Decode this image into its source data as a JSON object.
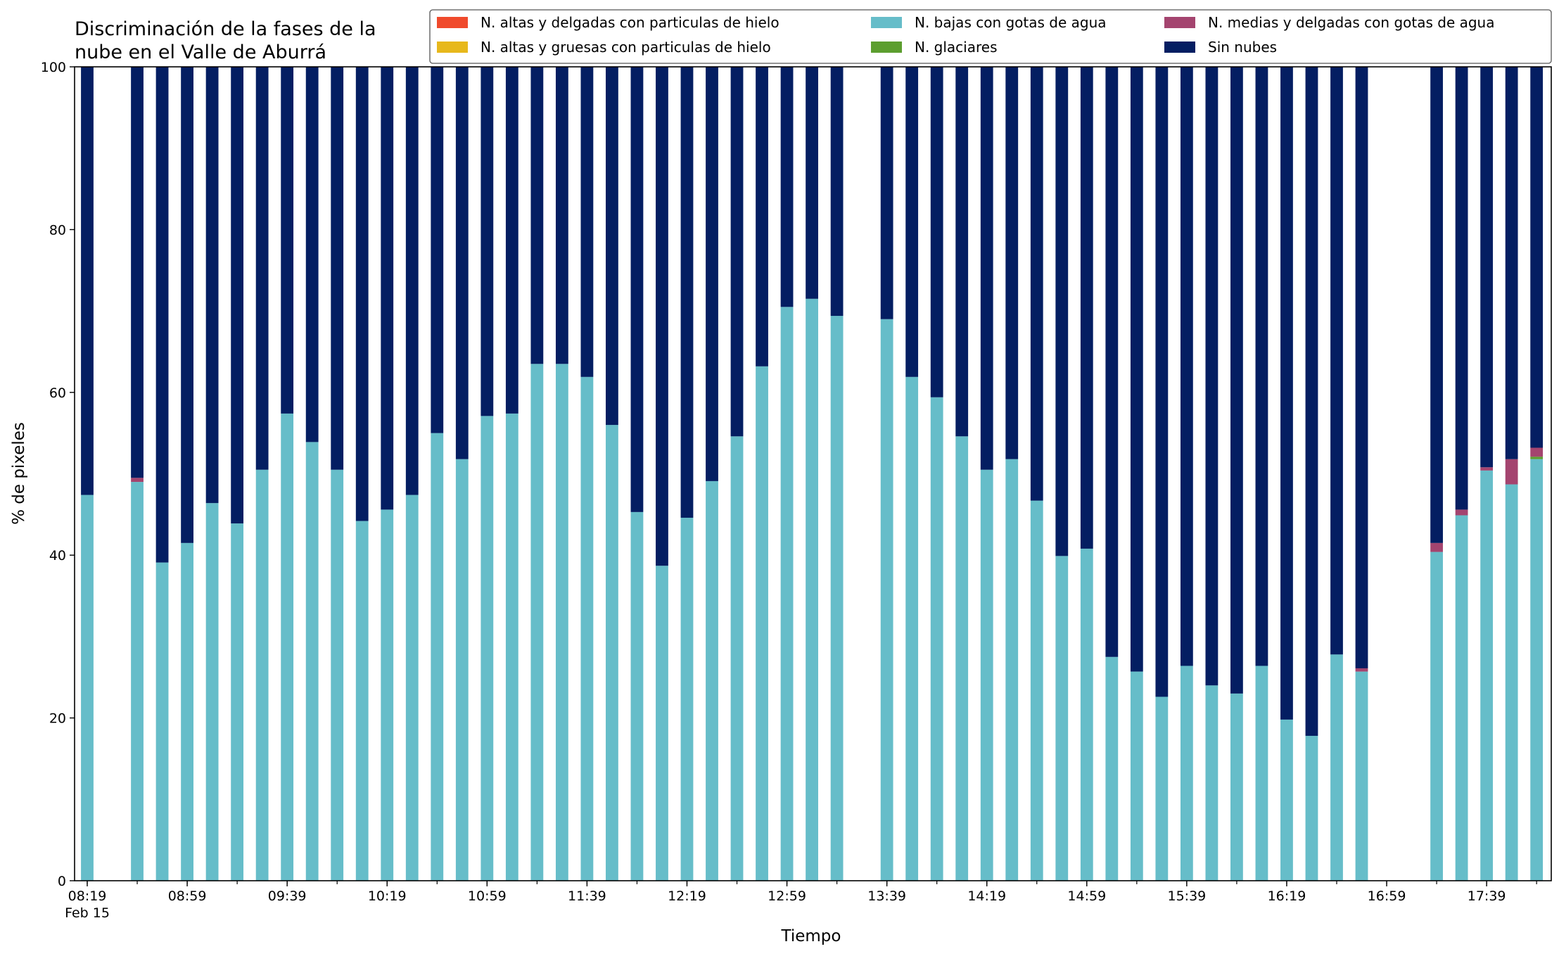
{
  "chart_data": {
    "type": "bar",
    "stacked": true,
    "title_lines": [
      "Discriminación de la fases de la",
      "nube en el Valle de Aburrá"
    ],
    "xlabel": "Tiempo",
    "ylabel": "% de pixeles",
    "ylim": [
      0,
      100
    ],
    "yticks": [
      "0",
      "20",
      "40",
      "60",
      "80",
      "100"
    ],
    "x_start": "08:19",
    "x_step_minutes": 10,
    "x_count": 59,
    "x_ticks": [
      {
        "index": 0,
        "label": "08:19",
        "sublabel": "Feb 15"
      },
      {
        "index": 4,
        "label": "08:59"
      },
      {
        "index": 8,
        "label": "09:39"
      },
      {
        "index": 12,
        "label": "10:19"
      },
      {
        "index": 16,
        "label": "10:59"
      },
      {
        "index": 20,
        "label": "11:39"
      },
      {
        "index": 24,
        "label": "12:19"
      },
      {
        "index": 28,
        "label": "12:59"
      },
      {
        "index": 32,
        "label": "13:39"
      },
      {
        "index": 36,
        "label": "14:19"
      },
      {
        "index": 40,
        "label": "14:59"
      },
      {
        "index": 44,
        "label": "15:39"
      },
      {
        "index": 48,
        "label": "16:19"
      },
      {
        "index": 52,
        "label": "16:59"
      },
      {
        "index": 56,
        "label": "17:39"
      }
    ],
    "legend_position": "top-right",
    "series": [
      {
        "name": "N. altas y delgadas con particulas de hielo",
        "color": "#f04a2c",
        "values": [
          0,
          null,
          0,
          0,
          0,
          0,
          0,
          0,
          0,
          0,
          0,
          0,
          0,
          0,
          0,
          0,
          0,
          0,
          0,
          0,
          0,
          0,
          0,
          0,
          0,
          0,
          0,
          0,
          0,
          0,
          0,
          null,
          0,
          0,
          0,
          0,
          0,
          0,
          0,
          0,
          0,
          0,
          0,
          0,
          0,
          0,
          0,
          0,
          0,
          0,
          0,
          0,
          null,
          null,
          0,
          0,
          0,
          0,
          0
        ]
      },
      {
        "name": "N. altas y gruesas con particulas de hielo",
        "color": "#e7b81c",
        "values": [
          0,
          null,
          0,
          0,
          0,
          0,
          0,
          0,
          0,
          0,
          0,
          0,
          0,
          0,
          0,
          0,
          0,
          0,
          0,
          0,
          0,
          0,
          0,
          0,
          0,
          0,
          0,
          0,
          0,
          0,
          0,
          null,
          0,
          0,
          0,
          0,
          0,
          0,
          0,
          0,
          0,
          0,
          0,
          0,
          0,
          0,
          0,
          0,
          0,
          0,
          0,
          0,
          null,
          null,
          0,
          0,
          0,
          0,
          0
        ]
      },
      {
        "name": "N. bajas con gotas de agua",
        "color": "#66bdc9",
        "values": [
          47.4,
          null,
          49,
          39.1,
          41.5,
          46.4,
          43.9,
          50.5,
          57.4,
          53.9,
          50.5,
          44.2,
          45.6,
          47.4,
          55,
          51.8,
          57.1,
          57.4,
          63.5,
          63.5,
          61.9,
          56,
          45.3,
          38.7,
          44.6,
          49.1,
          54.6,
          63.2,
          70.5,
          71.5,
          69.4,
          null,
          69,
          61.9,
          59.4,
          54.6,
          50.5,
          51.8,
          46.7,
          39.9,
          40.8,
          27.5,
          25.7,
          22.6,
          26.4,
          24,
          23,
          26.4,
          19.8,
          17.8,
          27.8,
          25.7,
          null,
          null,
          40.4,
          44.9,
          50.4,
          48.7,
          51.8
        ]
      },
      {
        "name": "N. glaciares",
        "color": "#5c9e2f",
        "values": [
          0,
          null,
          0,
          0,
          0,
          0,
          0,
          0,
          0,
          0,
          0,
          0,
          0,
          0,
          0,
          0,
          0,
          0,
          0,
          0,
          0,
          0,
          0,
          0,
          0,
          0,
          0,
          0,
          0,
          0,
          0,
          null,
          0,
          0,
          0,
          0,
          0,
          0,
          0,
          0,
          0,
          0,
          0,
          0,
          0,
          0,
          0,
          0,
          0,
          0,
          0,
          0,
          null,
          null,
          0,
          0,
          0,
          0,
          0.3
        ]
      },
      {
        "name": "N. medias y delgadas con gotas de agua",
        "color": "#a4446f",
        "values": [
          0,
          null,
          0.5,
          0,
          0,
          0,
          0,
          0,
          0,
          0,
          0,
          0,
          0,
          0,
          0,
          0,
          0,
          0,
          0,
          0,
          0,
          0,
          0,
          0,
          0,
          0,
          0,
          0,
          0,
          0,
          0,
          null,
          0,
          0,
          0,
          0,
          0,
          0,
          0,
          0,
          0,
          0,
          0,
          0,
          0,
          0,
          0,
          0,
          0,
          0,
          0,
          0.4,
          null,
          null,
          1.1,
          0.7,
          0.4,
          3.1,
          1.1
        ]
      },
      {
        "name": "Sin nubes",
        "color": "#041e62",
        "values": [
          52.6,
          null,
          50.5,
          60.9,
          58.5,
          53.6,
          56.1,
          49.5,
          42.6,
          46.1,
          49.5,
          55.8,
          54.4,
          52.6,
          45,
          48.2,
          42.9,
          42.6,
          36.5,
          36.5,
          38.1,
          44,
          54.7,
          61.3,
          55.4,
          50.9,
          45.4,
          36.8,
          29.5,
          28.5,
          30.6,
          null,
          31,
          38.1,
          40.6,
          45.4,
          49.5,
          48.2,
          53.3,
          60.1,
          59.2,
          72.5,
          74.3,
          77.4,
          73.6,
          76,
          77,
          73.6,
          80.2,
          82.2,
          72.2,
          73.9,
          null,
          null,
          58.5,
          54.4,
          49.2,
          48.2,
          46.8
        ]
      }
    ]
  }
}
